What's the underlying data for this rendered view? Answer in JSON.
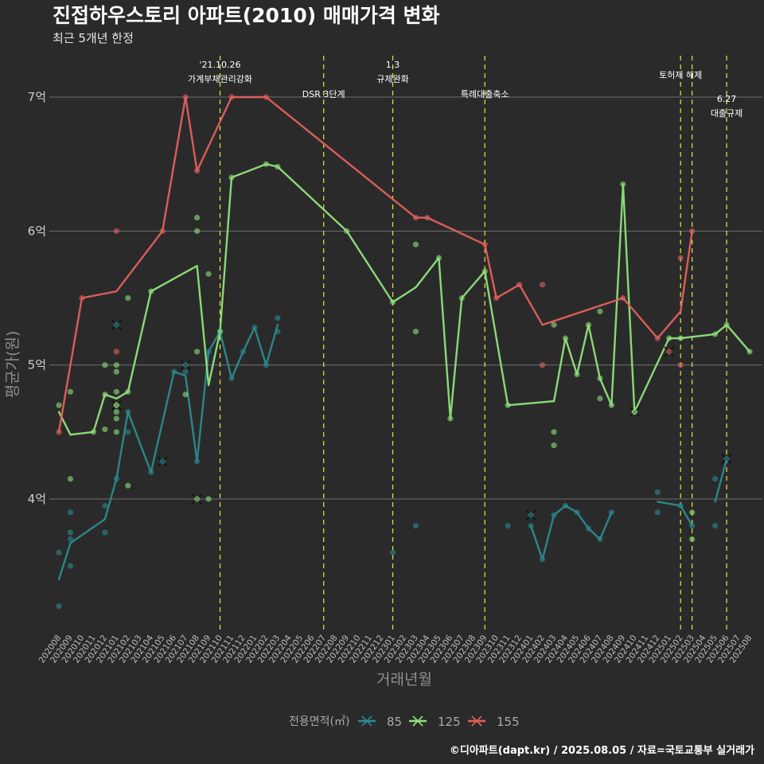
{
  "chart_data": {
    "type": "line",
    "title": "진접하우스토리 아파트(2010) 매매가격 변화",
    "subtitle": "최근 5개년 한정",
    "xlabel": "거래년월",
    "ylabel": "평균가(원)",
    "caption": "©디아파트(dapt.kr) / 2025.08.05 / 자료=국토교통부 실거래가",
    "ylim_eok": [
      3.0,
      7.4
    ],
    "yticks": [
      {
        "value": 4,
        "label": "4억"
      },
      {
        "value": 5,
        "label": "5억"
      },
      {
        "value": 6,
        "label": "6억"
      },
      {
        "value": 7,
        "label": "7억"
      }
    ],
    "months": [
      "202008",
      "202009",
      "202010",
      "202011",
      "202012",
      "202101",
      "202102",
      "202103",
      "202104",
      "202105",
      "202106",
      "202107",
      "202108",
      "202109",
      "202110",
      "202111",
      "202112",
      "202201",
      "202202",
      "202203",
      "202204",
      "202205",
      "202206",
      "202207",
      "202208",
      "202209",
      "202210",
      "202211",
      "202212",
      "202301",
      "202302",
      "202303",
      "202304",
      "202305",
      "202306",
      "202307",
      "202308",
      "202309",
      "202310",
      "202311",
      "202312",
      "202401",
      "202402",
      "202403",
      "202404",
      "202405",
      "202406",
      "202407",
      "202408",
      "202409",
      "202410",
      "202411",
      "202412",
      "202501",
      "202502",
      "202503",
      "202504",
      "202505",
      "202506",
      "202507",
      "202508"
    ],
    "grid": true,
    "legend": {
      "title": "전용면적(㎡)",
      "position": "bottom",
      "items": [
        "85",
        "125",
        "155"
      ]
    },
    "series": [
      {
        "name": "85",
        "color": "#2a8b8e",
        "line": [
          [
            "202008",
            3.4
          ],
          [
            "202009",
            3.67
          ],
          [
            "202012",
            3.85
          ],
          [
            "202101",
            4.15
          ],
          [
            "202102",
            4.65
          ],
          [
            "202104",
            4.2
          ],
          [
            "202106",
            4.95
          ],
          [
            "202107",
            4.92
          ],
          [
            "202108",
            4.28
          ],
          [
            "202109",
            5.1
          ],
          [
            "202110",
            5.25
          ],
          [
            "202111",
            4.9
          ],
          [
            "202112",
            5.1
          ],
          [
            "202201",
            5.28
          ],
          [
            "202202",
            5.0
          ],
          [
            "202203",
            5.3
          ],
          null,
          [
            "202401",
            3.8
          ],
          [
            "202402",
            3.55
          ],
          [
            "202403",
            3.88
          ],
          [
            "202404",
            3.95
          ],
          [
            "202405",
            3.9
          ],
          [
            "202406",
            3.78
          ],
          [
            "202407",
            3.7
          ],
          [
            "202408",
            3.9
          ],
          null,
          [
            "202412",
            3.98
          ],
          [
            "202502",
            3.95
          ],
          [
            "202503",
            3.8
          ],
          null,
          [
            "202505",
            3.98
          ],
          [
            "202506",
            4.3
          ]
        ],
        "points": [
          [
            "202008",
            3.2
          ],
          [
            "202008",
            3.6
          ],
          [
            "202009",
            3.9
          ],
          [
            "202009",
            3.75
          ],
          [
            "202009",
            3.7
          ],
          [
            "202009",
            3.5
          ],
          [
            "202012",
            3.95
          ],
          [
            "202012",
            3.75
          ],
          [
            "202101",
            4.15
          ],
          [
            "202102",
            4.65
          ],
          [
            "202102",
            4.5
          ],
          [
            "202104",
            4.2
          ],
          [
            "202106",
            4.95
          ],
          [
            "202107",
            4.95
          ],
          [
            "202108",
            4.28
          ],
          [
            "202109",
            5.1
          ],
          [
            "202110",
            5.25
          ],
          [
            "202111",
            4.9
          ],
          [
            "202112",
            5.1
          ],
          [
            "202201",
            5.28
          ],
          [
            "202202",
            5.0
          ],
          [
            "202203",
            5.35
          ],
          [
            "202203",
            5.25
          ],
          [
            "202301",
            3.6
          ],
          [
            "202303",
            3.8
          ],
          [
            "202311",
            3.8
          ],
          [
            "202401",
            3.8
          ],
          [
            "202402",
            3.55
          ],
          [
            "202403",
            3.88
          ],
          [
            "202404",
            3.95
          ],
          [
            "202405",
            3.9
          ],
          [
            "202406",
            3.78
          ],
          [
            "202407",
            3.7
          ],
          [
            "202408",
            3.9
          ],
          [
            "202412",
            4.05
          ],
          [
            "202412",
            3.9
          ],
          [
            "202502",
            3.95
          ],
          [
            "202503",
            3.8
          ],
          [
            "202505",
            3.8
          ],
          [
            "202505",
            4.15
          ]
        ],
        "cancelled": [
          [
            "202101",
            5.3
          ],
          [
            "202105",
            4.28
          ],
          [
            "202107",
            5.0
          ],
          [
            "202401",
            3.88
          ],
          [
            "202506",
            4.3
          ]
        ]
      },
      {
        "name": "125",
        "color": "#8fe27a",
        "line": [
          [
            "202008",
            4.65
          ],
          [
            "202009",
            4.48
          ],
          [
            "202011",
            4.5
          ],
          [
            "202012",
            4.78
          ],
          [
            "202101",
            4.75
          ],
          [
            "202102",
            4.8
          ],
          [
            "202104",
            5.55
          ],
          [
            "202108",
            5.74
          ],
          [
            "202109",
            4.85
          ],
          [
            "202110",
            5.25
          ],
          [
            "202111",
            6.4
          ],
          [
            "202202",
            6.5
          ],
          [
            "202203",
            6.48
          ],
          [
            "202209",
            6.0
          ],
          [
            "202301",
            5.47
          ],
          [
            "202303",
            5.58
          ],
          [
            "202305",
            5.8
          ],
          [
            "202306",
            4.6
          ],
          [
            "202307",
            5.5
          ],
          [
            "202309",
            5.7
          ],
          [
            "202311",
            4.7
          ],
          [
            "202403",
            4.73
          ],
          [
            "202404",
            5.2
          ],
          [
            "202405",
            4.93
          ],
          [
            "202406",
            5.3
          ],
          [
            "202407",
            4.9
          ],
          [
            "202408",
            4.7
          ],
          [
            "202409",
            6.35
          ],
          [
            "202410",
            4.65
          ],
          [
            "202501",
            5.2
          ],
          [
            "202502",
            5.2
          ],
          [
            "202505",
            5.23
          ],
          [
            "202506",
            5.3
          ],
          [
            "202508",
            5.1
          ]
        ],
        "points": [
          [
            "202008",
            4.7
          ],
          [
            "202009",
            4.8
          ],
          [
            "202009",
            4.15
          ],
          [
            "202011",
            4.5
          ],
          [
            "202012",
            5.0
          ],
          [
            "202012",
            4.52
          ],
          [
            "202012",
            4.78
          ],
          [
            "202101",
            5.0
          ],
          [
            "202101",
            4.95
          ],
          [
            "202101",
            4.8
          ],
          [
            "202101",
            4.7
          ],
          [
            "202101",
            4.65
          ],
          [
            "202101",
            4.6
          ],
          [
            "202101",
            4.5
          ],
          [
            "202102",
            5.5
          ],
          [
            "202102",
            4.8
          ],
          [
            "202102",
            4.1
          ],
          [
            "202104",
            5.55
          ],
          [
            "202107",
            4.78
          ],
          [
            "202108",
            6.1
          ],
          [
            "202108",
            6.0
          ],
          [
            "202108",
            5.1
          ],
          [
            "202109",
            5.68
          ],
          [
            "202109",
            4.0
          ],
          [
            "202110",
            5.25
          ],
          [
            "202111",
            6.4
          ],
          [
            "202202",
            6.5
          ],
          [
            "202203",
            6.48
          ],
          [
            "202209",
            6.0
          ],
          [
            "202301",
            5.47
          ],
          [
            "202303",
            5.9
          ],
          [
            "202303",
            5.25
          ],
          [
            "202305",
            5.8
          ],
          [
            "202306",
            4.6
          ],
          [
            "202307",
            5.5
          ],
          [
            "202309",
            5.7
          ],
          [
            "202311",
            4.7
          ],
          [
            "202403",
            5.3
          ],
          [
            "202403",
            4.5
          ],
          [
            "202403",
            4.4
          ],
          [
            "202404",
            5.2
          ],
          [
            "202405",
            4.93
          ],
          [
            "202406",
            5.3
          ],
          [
            "202407",
            5.4
          ],
          [
            "202407",
            4.9
          ],
          [
            "202407",
            4.75
          ],
          [
            "202408",
            4.7
          ],
          [
            "202409",
            6.35
          ],
          [
            "202410",
            4.65
          ],
          [
            "202501",
            5.2
          ],
          [
            "202502",
            5.2
          ],
          [
            "202503",
            3.9
          ],
          [
            "202503",
            3.7
          ],
          [
            "202505",
            5.23
          ],
          [
            "202506",
            5.3
          ],
          [
            "202508",
            5.1
          ]
        ],
        "cancelled": [
          [
            "202101",
            4.7
          ],
          [
            "202108",
            4.0
          ],
          [
            "202410",
            4.65
          ]
        ]
      },
      {
        "name": "155",
        "color": "#e3605d",
        "line": [
          [
            "202008",
            4.5
          ],
          [
            "202010",
            5.5
          ],
          [
            "202101",
            5.55
          ],
          [
            "202105",
            6.0
          ],
          [
            "202107",
            7.0
          ],
          [
            "202108",
            6.45
          ],
          [
            "202111",
            7.0
          ],
          [
            "202202",
            7.0
          ],
          [
            "202303",
            6.1
          ],
          [
            "202304",
            6.1
          ],
          [
            "202309",
            5.9
          ],
          [
            "202310",
            5.5
          ],
          [
            "202312",
            5.6
          ],
          [
            "202402",
            5.3
          ],
          [
            "202409",
            5.5
          ],
          [
            "202412",
            5.2
          ],
          [
            "202502",
            5.4
          ],
          [
            "202503",
            6.0
          ]
        ],
        "points": [
          [
            "202008",
            4.5
          ],
          [
            "202010",
            5.5
          ],
          [
            "202101",
            6.0
          ],
          [
            "202101",
            5.1
          ],
          [
            "202105",
            6.0
          ],
          [
            "202107",
            7.0
          ],
          [
            "202108",
            6.45
          ],
          [
            "202111",
            7.0
          ],
          [
            "202202",
            7.0
          ],
          [
            "202303",
            6.1
          ],
          [
            "202304",
            6.1
          ],
          [
            "202309",
            5.9
          ],
          [
            "202310",
            5.5
          ],
          [
            "202312",
            5.6
          ],
          [
            "202402",
            5.6
          ],
          [
            "202402",
            5.0
          ],
          [
            "202409",
            5.5
          ],
          [
            "202412",
            5.2
          ],
          [
            "202502",
            5.8
          ],
          [
            "202502",
            5.0
          ],
          [
            "202503",
            6.0
          ]
        ],
        "cancelled": [
          [
            "202413",
            5.1
          ]
        ]
      }
    ],
    "events": [
      {
        "month": "202110",
        "lines": [
          "'21.10.26",
          "가계부채관리강화"
        ],
        "level": 1
      },
      {
        "month": "202207",
        "lines": [
          "DSR 3단계"
        ],
        "level": 2
      },
      {
        "month": "202301",
        "lines": [
          "1.3",
          "규제완화"
        ],
        "level": 1
      },
      {
        "month": "202309",
        "lines": [
          "특례대출축소"
        ],
        "level": 2
      },
      {
        "month": "202502",
        "lines": [
          "토허제 해제"
        ],
        "level": 0
      },
      {
        "month": "202503",
        "lines": [],
        "level": 0
      },
      {
        "month": "202506",
        "lines": [
          "6.27",
          "대출규제"
        ],
        "level": 3
      }
    ]
  }
}
